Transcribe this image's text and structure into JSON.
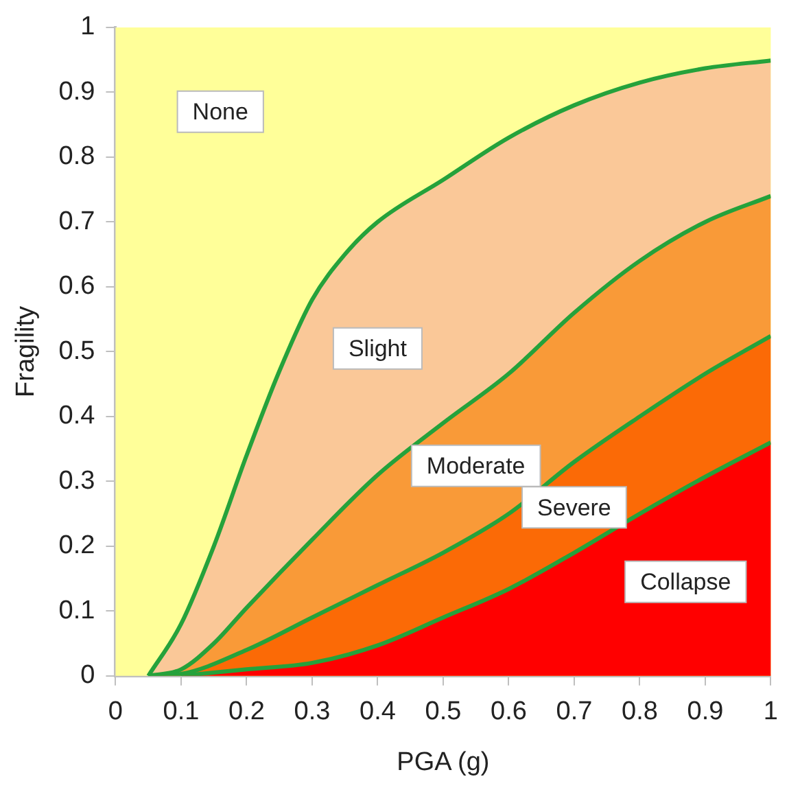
{
  "chart_data": {
    "type": "area",
    "xlabel": "PGA (g)",
    "ylabel": "Fragility",
    "xlim": [
      0,
      1
    ],
    "ylim": [
      0,
      1
    ],
    "xticks": [
      0,
      0.1,
      0.2,
      0.3,
      0.4,
      0.5,
      0.6,
      0.7,
      0.8,
      0.9,
      1
    ],
    "yticks": [
      0,
      0.1,
      0.2,
      0.3,
      0.4,
      0.5,
      0.6,
      0.7,
      0.8,
      0.9,
      1
    ],
    "grid": false,
    "legend": false,
    "marker": "none",
    "line_style": "solid",
    "bands": [
      {
        "axis": "y",
        "from": 0,
        "to": 1,
        "label": "None",
        "color": "#ffff99"
      }
    ],
    "series": [
      {
        "name": "Slight",
        "color": "#fac898",
        "x": [
          0.05,
          0.1,
          0.15,
          0.2,
          0.25,
          0.3,
          0.35,
          0.4,
          0.5,
          0.6,
          0.7,
          0.8,
          0.9,
          1
        ],
        "values": [
          0,
          0.08,
          0.2,
          0.34,
          0.47,
          0.58,
          0.65,
          0.7,
          0.765,
          0.83,
          0.88,
          0.915,
          0.937,
          0.949
        ]
      },
      {
        "name": "Moderate",
        "color": "#f99a38",
        "x": [
          0.05,
          0.1,
          0.15,
          0.2,
          0.3,
          0.4,
          0.5,
          0.6,
          0.7,
          0.8,
          0.9,
          1
        ],
        "values": [
          0,
          0.01,
          0.05,
          0.105,
          0.21,
          0.31,
          0.39,
          0.466,
          0.56,
          0.64,
          0.7,
          0.74
        ]
      },
      {
        "name": "Severe",
        "color": "#fb6a06",
        "x": [
          0.05,
          0.1,
          0.2,
          0.3,
          0.4,
          0.5,
          0.6,
          0.7,
          0.8,
          0.9,
          1
        ],
        "values": [
          0,
          0.003,
          0.04,
          0.09,
          0.14,
          0.19,
          0.25,
          0.33,
          0.4,
          0.466,
          0.524
        ]
      },
      {
        "name": "Collapse",
        "color": "#ff0000",
        "x": [
          0.1,
          0.2,
          0.3,
          0.4,
          0.5,
          0.6,
          0.7,
          0.8,
          0.9,
          1
        ],
        "values": [
          0,
          0.01,
          0.02,
          0.047,
          0.09,
          0.134,
          0.19,
          0.25,
          0.307,
          0.36
        ]
      }
    ]
  }
}
